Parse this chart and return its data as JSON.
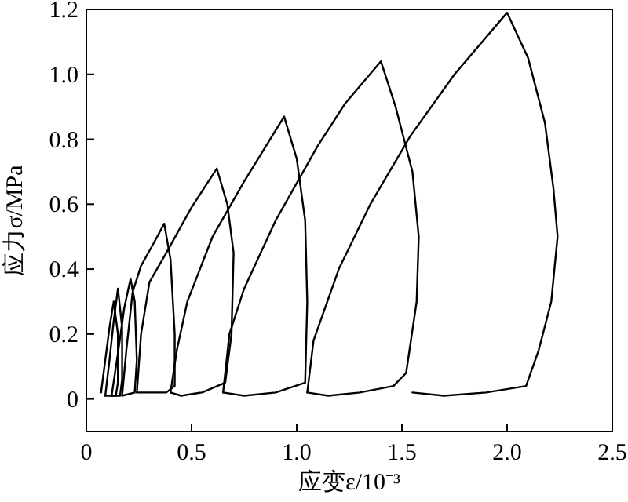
{
  "chart_data": {
    "type": "line",
    "xlabel": "应变ε/10⁻³",
    "ylabel": "应力σ/MPa",
    "xlim": [
      0,
      2.5
    ],
    "ylim": [
      -0.1,
      1.2
    ],
    "xticks": [
      0,
      {
        "value": 0.5,
        "label": "0.5"
      },
      {
        "value": 1,
        "label": "1.0"
      },
      {
        "value": 1.5,
        "label": "1.5"
      },
      {
        "value": 2,
        "label": "2.0"
      },
      {
        "value": 2.5,
        "label": "2.5"
      }
    ],
    "yticks": [
      0,
      {
        "value": 0.2,
        "label": "0.2"
      },
      {
        "value": 0.4,
        "label": "0.4"
      },
      {
        "value": 0.6,
        "label": "0.6"
      },
      {
        "value": 0.8,
        "label": "0.8"
      },
      {
        "value": 1,
        "label": "1.0"
      },
      {
        "value": 1.2,
        "label": "1.2"
      }
    ],
    "grid": false,
    "marker": "none",
    "line_style": "solid",
    "series": [
      {
        "color": "#000000",
        "x": [
          0.07,
          0.09,
          0.11,
          0.13,
          0.15,
          0.15,
          0.14,
          0.09
        ],
        "values": [
          0.02,
          0.12,
          0.22,
          0.3,
          0.2,
          0.05,
          0.01,
          0.01
        ]
      },
      {
        "color": "#000000",
        "x": [
          0.09,
          0.11,
          0.13,
          0.15,
          0.17,
          0.17,
          0.16,
          0.12
        ],
        "values": [
          0.01,
          0.12,
          0.24,
          0.34,
          0.22,
          0.06,
          0.01,
          0.01
        ]
      },
      {
        "color": "#000000",
        "x": [
          0.12,
          0.15,
          0.18,
          0.21,
          0.23,
          0.24,
          0.23,
          0.17
        ],
        "values": [
          0.01,
          0.14,
          0.28,
          0.37,
          0.3,
          0.12,
          0.02,
          0.01
        ]
      },
      {
        "color": "#000000",
        "x": [
          0.17,
          0.19,
          0.22,
          0.26,
          0.32,
          0.37,
          0.4,
          0.42,
          0.42,
          0.38,
          0.3,
          0.24
        ],
        "values": [
          0.01,
          0.15,
          0.33,
          0.41,
          0.48,
          0.54,
          0.43,
          0.2,
          0.04,
          0.02,
          0.02,
          0.02
        ]
      },
      {
        "color": "#000000",
        "x": [
          0.24,
          0.26,
          0.3,
          0.38,
          0.5,
          0.62,
          0.67,
          0.7,
          0.69,
          0.66,
          0.55,
          0.45,
          0.4
        ],
        "values": [
          0.02,
          0.2,
          0.36,
          0.45,
          0.59,
          0.71,
          0.6,
          0.45,
          0.2,
          0.05,
          0.02,
          0.01,
          0.02
        ]
      },
      {
        "color": "#000000",
        "x": [
          0.4,
          0.43,
          0.48,
          0.6,
          0.75,
          0.94,
          1.0,
          1.04,
          1.05,
          1.04,
          0.9,
          0.75,
          0.65
        ],
        "values": [
          0.02,
          0.15,
          0.3,
          0.5,
          0.67,
          0.87,
          0.74,
          0.55,
          0.3,
          0.05,
          0.02,
          0.01,
          0.02
        ]
      },
      {
        "color": "#000000",
        "x": [
          0.65,
          0.68,
          0.75,
          0.9,
          1.1,
          1.23,
          1.4,
          1.47,
          1.55,
          1.58,
          1.57,
          1.52,
          1.46,
          1.3,
          1.15,
          1.05
        ],
        "values": [
          0.02,
          0.2,
          0.34,
          0.55,
          0.78,
          0.91,
          1.04,
          0.9,
          0.7,
          0.5,
          0.3,
          0.08,
          0.04,
          0.02,
          0.01,
          0.02
        ]
      },
      {
        "color": "#000000",
        "x": [
          1.05,
          1.08,
          1.2,
          1.35,
          1.54,
          1.75,
          2.0,
          2.1,
          2.18,
          2.22,
          2.24,
          2.21,
          2.15,
          2.09,
          1.9,
          1.7,
          1.55
        ],
        "values": [
          0.02,
          0.18,
          0.4,
          0.6,
          0.81,
          1.0,
          1.19,
          1.05,
          0.85,
          0.65,
          0.5,
          0.3,
          0.15,
          0.04,
          0.02,
          0.01,
          0.02
        ]
      }
    ]
  }
}
